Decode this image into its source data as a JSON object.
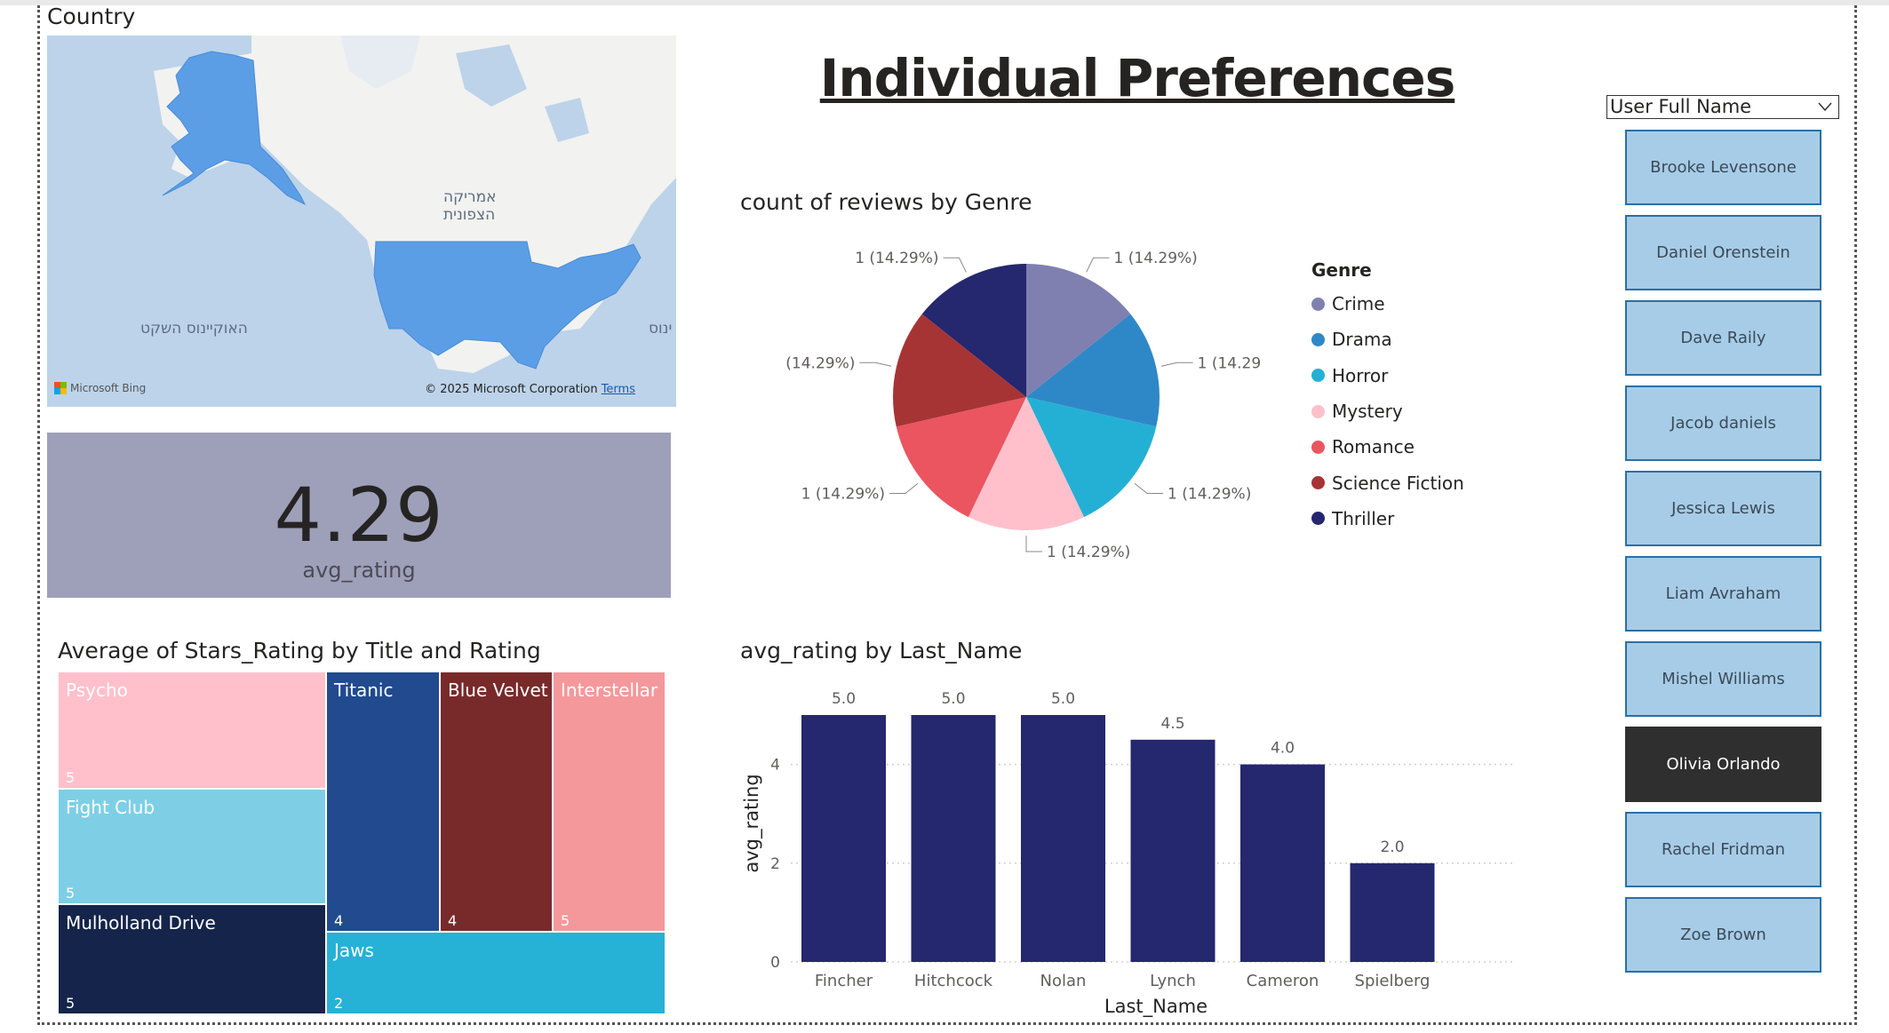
{
  "map_visual": {
    "title": "Country",
    "labels": {
      "north_america_line1": "אמריקה",
      "north_america_line2": "הצפונית",
      "pacific": "האוקיינוס השקט",
      "atlantic_partial": "ינוס"
    },
    "attribution": "Microsoft Bing",
    "copyright": "© 2025 Microsoft Corporation",
    "terms": "Terms",
    "colors": {
      "water": "#bcd3ea",
      "land": "#f2f2f0",
      "highlight": "#5b9ee6"
    }
  },
  "card": {
    "value": "4.29",
    "label": "avg_rating"
  },
  "page_title": "Individual Preferences",
  "pie_visual": {
    "title": "count of reviews by Genre",
    "legend_title": "Genre"
  },
  "bar_visual": {
    "title": "avg_rating by Last_Name"
  },
  "treemap_visual": {
    "title": "Average of Stars_Rating by Title and Rating"
  },
  "slicer": {
    "header": "User Full Name",
    "items": [
      {
        "label": "Brooke Levensone",
        "selected": false
      },
      {
        "label": "Daniel Orenstein",
        "selected": false
      },
      {
        "label": "Dave Raily",
        "selected": false
      },
      {
        "label": "Jacob daniels",
        "selected": false
      },
      {
        "label": "Jessica Lewis",
        "selected": false
      },
      {
        "label": "Liam Avraham",
        "selected": false
      },
      {
        "label": "Mishel Williams",
        "selected": false
      },
      {
        "label": "Olivia Orlando",
        "selected": true
      },
      {
        "label": "Rachel Fridman",
        "selected": false
      },
      {
        "label": "Zoe Brown",
        "selected": false
      }
    ]
  },
  "chart_data": [
    {
      "type": "pie",
      "title": "count of reviews by Genre",
      "legend_title": "Genre",
      "legend_position": "right",
      "categories": [
        "Crime",
        "Drama",
        "Horror",
        "Mystery",
        "Romance",
        "Science Fiction",
        "Thriller"
      ],
      "values": [
        1,
        1,
        1,
        1,
        1,
        1,
        1
      ],
      "data_labels": [
        "1 (14.29%)",
        "1 (14.29%)",
        "1 (14.29%)",
        "1 (14.29%)",
        "1 (14.29%)",
        "1 (14.29%)",
        "1 (14.29%)"
      ],
      "colors": [
        "#7f80b0",
        "#2e88c8",
        "#24b0d4",
        "#ffc0cc",
        "#ea5560",
        "#a73435",
        "#25276f"
      ]
    },
    {
      "type": "bar",
      "title": "avg_rating by Last_Name",
      "xlabel": "Last_Name",
      "ylabel": "avg_rating",
      "categories": [
        "Fincher",
        "Hitchcock",
        "Nolan",
        "Lynch",
        "Cameron",
        "Spielberg"
      ],
      "values": [
        5.0,
        5.0,
        5.0,
        4.5,
        4.0,
        2.0
      ],
      "data_labels": [
        "5.0",
        "5.0",
        "5.0",
        "4.5",
        "4.0",
        "2.0"
      ],
      "ylim": [
        0,
        5
      ],
      "yticks": [
        0,
        2,
        4
      ],
      "grid": true,
      "color": "#25276f"
    },
    {
      "type": "treemap",
      "title": "Average of Stars_Rating by Title and Rating",
      "items": [
        {
          "title": "Psycho",
          "value": 5,
          "color": "#ffc0cc",
          "text_color": "#ffffff"
        },
        {
          "title": "Fight Club",
          "value": 5,
          "color": "#7ecfe6",
          "text_color": "#ffffff"
        },
        {
          "title": "Mulholland Drive",
          "value": 5,
          "color": "#15244a",
          "text_color": "#ffffff"
        },
        {
          "title": "Titanic",
          "value": 4,
          "color": "#214a8f",
          "text_color": "#ffffff"
        },
        {
          "title": "Blue Velvet",
          "value": 4,
          "color": "#782a2b",
          "text_color": "#ffffff"
        },
        {
          "title": "Interstellar",
          "value": 5,
          "color": "#f4989c",
          "text_color": "#ffffff"
        },
        {
          "title": "Jaws",
          "value": 2,
          "color": "#26b1d6",
          "text_color": "#ffffff"
        }
      ]
    }
  ]
}
